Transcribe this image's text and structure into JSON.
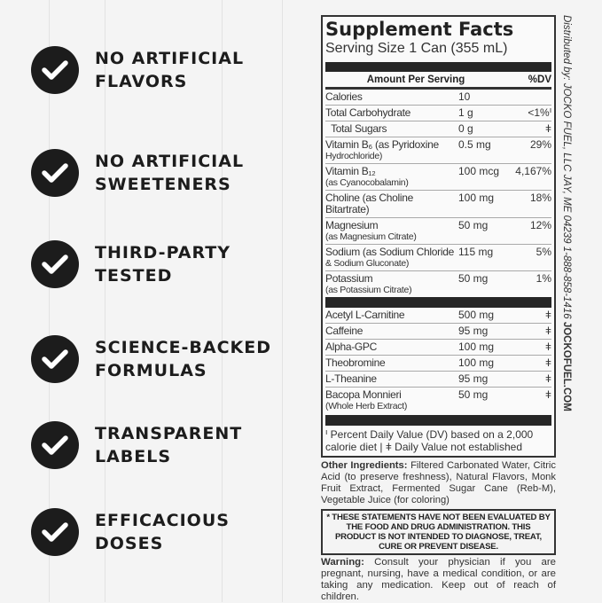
{
  "claims": [
    {
      "line1": "NO ARTIFICIAL",
      "line2": "FLAVORS",
      "icon": "check-circle-icon"
    },
    {
      "line1": "NO ARTIFICIAL",
      "line2": "SWEETENERS",
      "icon": "check-circle-icon"
    },
    {
      "line1": "THIRD-PARTY",
      "line2": "TESTED",
      "icon": "check-circle-icon"
    },
    {
      "line1": "SCIENCE-BACKED",
      "line2": "FORMULAS",
      "icon": "check-circle-icon"
    },
    {
      "line1": "TRANSPARENT",
      "line2": "LABELS",
      "icon": "check-circle-icon"
    },
    {
      "line1": "EFFICACIOUS",
      "line2": "DOSES",
      "icon": "check-circle-icon"
    }
  ],
  "panel": {
    "title": "Supplement Facts",
    "serving": "Serving Size 1 Can (355 mL)",
    "header": {
      "amount": "Amount Per Serving",
      "dv": "%DV"
    },
    "rows1": [
      {
        "name": "Calories",
        "sub": "",
        "amount": "10",
        "dv": ""
      },
      {
        "name": "Total Carbohydrate",
        "sub": "",
        "amount": "1 g",
        "dv": "<1%ᑊ"
      },
      {
        "name": "  Total Sugars",
        "sub": "",
        "amount": "0 g",
        "dv": "ǂ"
      },
      {
        "name": "Vitamin B₆ (as Pyridoxine",
        "sub": "Hydrochloride)",
        "amount": "0.5 mg",
        "dv": "29%"
      },
      {
        "name": "Vitamin B₁₂",
        "sub": "(as Cyanocobalamin)",
        "amount": "100 mcg",
        "dv": "4,167%"
      },
      {
        "name": "Choline (as Choline Bitartrate)",
        "sub": "",
        "amount": "100 mg",
        "dv": "18%"
      },
      {
        "name": "Magnesium",
        "sub": "(as Magnesium Citrate)",
        "amount": "50 mg",
        "dv": "12%"
      },
      {
        "name": "Sodium (as Sodium Chloride",
        "sub": "& Sodium Gluconate)",
        "amount": "115 mg",
        "dv": "5%"
      },
      {
        "name": "Potassium",
        "sub": "(as Potassium Citrate)",
        "amount": "50 mg",
        "dv": "1%"
      }
    ],
    "rows2": [
      {
        "name": "Acetyl L-Carnitine",
        "sub": "",
        "amount": "500 mg",
        "dv": "ǂ"
      },
      {
        "name": "Caffeine",
        "sub": "",
        "amount": "95 mg",
        "dv": "ǂ"
      },
      {
        "name": "Alpha-GPC",
        "sub": "",
        "amount": "100 mg",
        "dv": "ǂ"
      },
      {
        "name": "Theobromine",
        "sub": "",
        "amount": "100 mg",
        "dv": "ǂ"
      },
      {
        "name": "L-Theanine",
        "sub": "",
        "amount": "95 mg",
        "dv": "ǂ"
      },
      {
        "name": "Bacopa Monnieri",
        "sub": "(Whole Herb Extract)",
        "amount": "50 mg",
        "dv": "ǂ"
      }
    ],
    "footnote": "ᑊ Percent Daily Value (DV) based on a 2,000 calorie diet  |  ǂ Daily Value not established"
  },
  "side": {
    "text": "Distributed by: JOCKO FUEL, LLC JAY, ME 04239 1-888-858-1416 ",
    "site": "JOCKOFUEL.COM"
  },
  "other": {
    "label": "Other Ingredients:",
    "text": " Filtered Carbonated Water, Citric Acid (to preserve freshness), Natural Flavors, Monk Fruit Extract, Fermented Sugar Cane (Reb-M), Vegetable Juice (for coloring)"
  },
  "fda": "* THESE STATEMENTS HAVE NOT BEEN EVALUATED BY THE FOOD AND DRUG ADMINISTRATION. THIS PRODUCT IS NOT INTENDED TO DIAGNOSE, TREAT, CURE OR PREVENT DISEASE.",
  "warning": {
    "label": "Warning:",
    "text": " Consult your physician if you are pregnant, nursing, have a medical condition, or are taking any medication. Keep out of reach of children."
  }
}
